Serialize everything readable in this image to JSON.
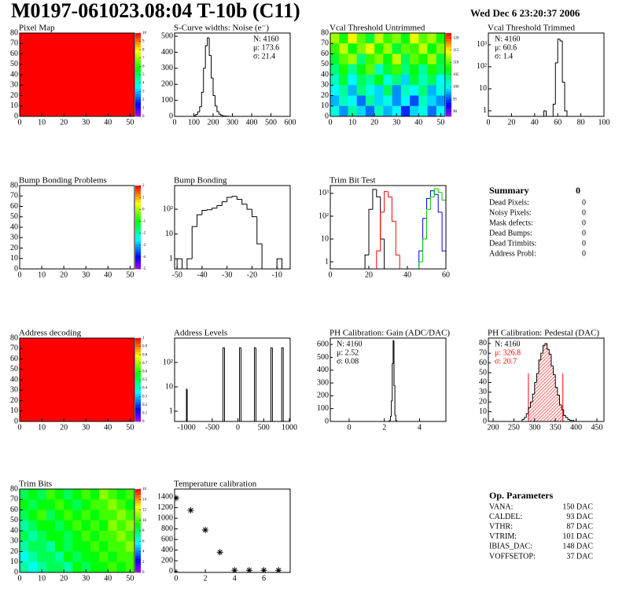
{
  "title": "M0197-061023.08:04 T-10b (C11)",
  "date": "Wed Dec  6 23:20:37 2006",
  "chart_data": [
    {
      "type": "heatmap",
      "title": "Pixel Map",
      "xlim": [
        0,
        52
      ],
      "ylim": [
        0,
        80
      ],
      "xticks": [
        0,
        10,
        20,
        30,
        40,
        50
      ],
      "yticks": [
        0,
        10,
        20,
        30,
        40,
        50,
        60,
        70,
        80
      ],
      "zlim": [
        0,
        10
      ],
      "zticks": [
        0,
        1,
        2,
        3,
        4,
        5,
        6,
        7,
        8,
        9,
        10
      ],
      "values": [
        [
          10
        ]
      ]
    },
    {
      "type": "histogram",
      "title": "S-Curve widths: Noise (e⁻)",
      "xlim": [
        0,
        600
      ],
      "ylim": [
        0,
        520
      ],
      "xticks": [
        0,
        100,
        200,
        300,
        400,
        500,
        600
      ],
      "yticks": [
        0,
        100,
        200,
        300,
        400,
        500
      ],
      "bins": [
        100,
        110,
        120,
        130,
        140,
        150,
        160,
        170,
        180,
        190,
        200,
        210,
        220,
        230,
        240,
        250,
        260,
        270,
        280
      ],
      "values": [
        4,
        12,
        28,
        60,
        150,
        300,
        440,
        490,
        380,
        240,
        130,
        65,
        30,
        14,
        7,
        3,
        2,
        1
      ],
      "color": "#000000",
      "stats": [
        "N: 4160",
        "μ: 173.6",
        "σ: 21.4"
      ],
      "stats_position": "upper right"
    },
    {
      "type": "heatmap",
      "title": "Vcal Threshold Untrimmed",
      "xlim": [
        0,
        52
      ],
      "ylim": [
        0,
        80
      ],
      "xticks": [
        0,
        10,
        20,
        30,
        40,
        50
      ],
      "yticks": [
        0,
        10,
        20,
        30,
        40,
        50,
        60,
        70,
        80
      ],
      "zlim": [
        88,
        122
      ],
      "zticks": [
        90,
        95,
        100,
        105,
        110,
        115,
        120
      ],
      "values": [
        [
          112,
          108,
          115,
          110,
          106,
          113,
          109,
          111,
          107,
          114,
          110,
          112,
          108
        ],
        [
          109,
          113,
          107,
          111,
          114,
          108,
          112,
          106,
          110,
          109,
          113,
          107,
          111
        ],
        [
          106,
          110,
          112,
          104,
          109,
          111,
          107,
          113,
          105,
          110,
          108,
          112,
          106
        ],
        [
          104,
          108,
          103,
          107,
          110,
          102,
          106,
          109,
          104,
          107,
          103,
          108,
          105
        ],
        [
          102,
          106,
          100,
          105,
          103,
          107,
          101,
          104,
          99,
          106,
          102,
          105,
          100
        ],
        [
          100,
          103,
          98,
          104,
          101,
          99,
          105,
          97,
          102,
          100,
          104,
          98,
          101
        ],
        [
          98,
          102,
          100,
          96,
          103,
          99,
          101,
          97,
          100,
          95,
          102,
          99,
          97
        ],
        [
          101,
          97,
          103,
          99,
          96,
          102,
          98,
          100,
          94,
          99,
          101,
          96,
          100
        ]
      ]
    },
    {
      "type": "histogram",
      "title": "Vcal Threshold Trimmed",
      "log_y": true,
      "xlim": [
        0,
        100
      ],
      "ylim": [
        0.56,
        3400
      ],
      "xticks": [
        0,
        20,
        40,
        60,
        80,
        100
      ],
      "yticks": [
        1,
        10,
        {
          "value": 100,
          "label": "10²"
        },
        {
          "value": 1000,
          "label": "10³"
        }
      ],
      "bins": [
        48,
        50,
        52,
        54,
        56,
        58,
        60,
        62,
        64,
        66,
        68
      ],
      "values": [
        1,
        0,
        0,
        0,
        2,
        150,
        1800,
        1500,
        20,
        1
      ],
      "color": "#000000",
      "stats": [
        "N: 4160",
        "μ: 60.6",
        "σ:  1.4"
      ],
      "stats_position": "upper left"
    },
    {
      "type": "heatmap",
      "title": "Bump Bonding Problems",
      "xlim": [
        0,
        52
      ],
      "ylim": [
        0,
        80
      ],
      "xticks": [
        0,
        10,
        20,
        30,
        40,
        50
      ],
      "yticks": [
        0,
        10,
        20,
        30,
        40,
        50,
        60,
        70,
        80
      ],
      "zlim": [
        -5,
        2
      ],
      "zticks": [
        -5,
        -4,
        -3,
        -2,
        -1,
        0,
        1,
        2
      ],
      "values": []
    },
    {
      "type": "histogram",
      "title": "Bump Bonding",
      "log_y": true,
      "xlim": [
        -51,
        -4.7
      ],
      "ylim": [
        0.39,
        900
      ],
      "xticks": [
        -50,
        -40,
        -30,
        -20,
        -10
      ],
      "yticks": [
        1,
        10,
        {
          "value": 100,
          "label": "10²"
        }
      ],
      "bins": [
        -50,
        -48,
        -46,
        -44,
        -42,
        -40,
        -38,
        -36,
        -34,
        -32,
        -30,
        -28,
        -26,
        -24,
        -22,
        -20,
        -18,
        -16,
        -14,
        -12,
        -10,
        -8
      ],
      "values": [
        1,
        0,
        1,
        20,
        60,
        90,
        95,
        110,
        140,
        200,
        300,
        330,
        250,
        160,
        100,
        50,
        4,
        0,
        0,
        0,
        1
      ],
      "color": "#000000"
    },
    {
      "type": "multi_histogram",
      "title": "Trim Bit Test",
      "log_y": true,
      "xlim": [
        0,
        60
      ],
      "ylim": [
        0.49,
        2200
      ],
      "xticks": [
        0,
        20,
        40,
        60
      ],
      "yticks": [
        1,
        10,
        {
          "value": 100,
          "label": "10²"
        },
        {
          "value": 1000,
          "label": "10³"
        }
      ],
      "bins": [
        16,
        18,
        20,
        22,
        24,
        26,
        28,
        30,
        32,
        34,
        36,
        38,
        40,
        42,
        44,
        46,
        48,
        50,
        52,
        54,
        56,
        58,
        60,
        62,
        64
      ],
      "series": [
        {
          "color": "#000000",
          "values": [
            0,
            2,
            200,
            1500,
            700,
            10,
            0,
            0,
            0,
            0,
            0,
            0,
            0,
            0,
            0,
            0,
            0,
            0,
            0,
            0,
            0,
            0,
            0,
            0
          ]
        },
        {
          "color": "#ff0000",
          "values": [
            0,
            0,
            0,
            0,
            3,
            150,
            1200,
            700,
            60,
            2,
            0,
            0,
            0,
            0,
            0,
            0,
            0,
            0,
            0,
            0,
            0,
            0,
            0,
            0
          ]
        },
        {
          "color": "#0000ff",
          "values": [
            0,
            0,
            0,
            0,
            0,
            0,
            0,
            0,
            0,
            0,
            0,
            0,
            0,
            0,
            0,
            3,
            80,
            600,
            1300,
            900,
            150,
            3,
            0,
            0
          ]
        },
        {
          "color": "#00cc00",
          "values": [
            0,
            0,
            0,
            0,
            0,
            0,
            0,
            0,
            0,
            0,
            0,
            0,
            0,
            0,
            0,
            1,
            10,
            200,
            700,
            1600,
            1100,
            500,
            80,
            2
          ]
        }
      ]
    },
    {
      "type": "heatmap",
      "title": "Address decoding",
      "xlim": [
        0,
        52
      ],
      "ylim": [
        0,
        80
      ],
      "xticks": [
        0,
        10,
        20,
        30,
        40,
        50
      ],
      "yticks": [
        0,
        10,
        20,
        30,
        40,
        50,
        60,
        70,
        80
      ],
      "zlim": [
        0,
        1
      ],
      "zticks": [
        0,
        0.1,
        0.2,
        0.3,
        0.4,
        0.5,
        0.6,
        0.7,
        0.8,
        0.9,
        1
      ],
      "values": [
        [
          1
        ]
      ]
    },
    {
      "type": "histogram",
      "title": "Address Levels",
      "log_y": true,
      "xlim": [
        -1230,
        1015
      ],
      "ylim": [
        0.38,
        1000
      ],
      "xticks": [
        -1000,
        -500,
        0,
        500,
        1000
      ],
      "yticks": [
        1,
        10,
        {
          "value": 100,
          "label": "10²"
        }
      ],
      "bins": [
        -1000,
        -985,
        -290,
        -260,
        30,
        60,
        320,
        350,
        640,
        670,
        850,
        880
      ],
      "values": [
        8,
        0,
        400,
        0,
        400,
        0,
        400,
        0,
        400,
        0,
        400
      ],
      "color": "#000000"
    },
    {
      "type": "histogram",
      "title": "PH Calibration: Gain (ADC/DAC)",
      "xlim": [
        -1.07,
        5.5
      ],
      "ylim": [
        0,
        650
      ],
      "xticks": [
        0,
        2,
        4
      ],
      "yticks": [
        0,
        100,
        200,
        300,
        400,
        500,
        600
      ],
      "bins": [
        2.25,
        2.3,
        2.35,
        2.4,
        2.45,
        2.5,
        2.55,
        2.6,
        2.65,
        2.7,
        2.75
      ],
      "values": [
        2,
        8,
        40,
        160,
        450,
        630,
        280,
        50,
        8,
        1
      ],
      "color": "#000000",
      "stats": [
        "N: 4160",
        "μ: 2.52",
        "σ: 0.08"
      ],
      "stats_position": "upper left"
    },
    {
      "type": "histogram",
      "title": "PH Calibration: Pedestal (DAC)",
      "xlim": [
        188.6,
        467
      ],
      "ylim": [
        0,
        85.5
      ],
      "xticks": [
        200,
        250,
        300,
        350,
        400,
        450
      ],
      "yticks": [
        0,
        10,
        20,
        30,
        40,
        50,
        60,
        70,
        80
      ],
      "bins": [
        270,
        275,
        280,
        285,
        290,
        295,
        300,
        305,
        310,
        315,
        320,
        325,
        330,
        335,
        340,
        345,
        350,
        355,
        360,
        365,
        370,
        375,
        380,
        385,
        390,
        395,
        400
      ],
      "values": [
        2,
        4,
        8,
        14,
        20,
        28,
        40,
        49,
        63,
        70,
        78,
        80,
        74,
        69,
        57,
        48,
        35,
        27,
        17,
        12,
        6,
        4,
        2,
        1,
        1,
        0
      ],
      "color": "#000000",
      "fit_color": "#ff0000",
      "fit_range": [
        285,
        368
      ],
      "stats": [
        "N: 4160",
        "μ: 326.8",
        "σ: 20.7"
      ],
      "stats_colors": [
        "#000000",
        "#ff0000",
        "#ff0000"
      ],
      "stats_position": "upper left"
    },
    {
      "type": "heatmap",
      "title": "Trim Bits",
      "xlim": [
        0,
        52
      ],
      "ylim": [
        0,
        80
      ],
      "xticks": [
        0,
        10,
        20,
        30,
        40,
        50
      ],
      "yticks": [
        0,
        10,
        20,
        30,
        40,
        50,
        60,
        70,
        80
      ],
      "zlim": [
        0,
        16
      ],
      "zticks": [
        0,
        2,
        4,
        6,
        8,
        10,
        12,
        14,
        16
      ],
      "values": [
        [
          8,
          9,
          8,
          10,
          9,
          8,
          9,
          10,
          9,
          11,
          10,
          9,
          10
        ],
        [
          9,
          8,
          9,
          9,
          10,
          9,
          8,
          9,
          10,
          10,
          11,
          10,
          9
        ],
        [
          8,
          9,
          10,
          8,
          9,
          10,
          9,
          10,
          9,
          10,
          10,
          11,
          10
        ],
        [
          7,
          8,
          9,
          9,
          8,
          9,
          10,
          9,
          10,
          9,
          11,
          10,
          11
        ],
        [
          8,
          7,
          8,
          9,
          9,
          8,
          9,
          10,
          9,
          10,
          10,
          11,
          10
        ],
        [
          7,
          8,
          8,
          7,
          9,
          8,
          9,
          9,
          10,
          9,
          10,
          10,
          11
        ],
        [
          6,
          7,
          8,
          8,
          7,
          9,
          8,
          9,
          9,
          10,
          9,
          10,
          10
        ],
        [
          7,
          6,
          7,
          8,
          8,
          7,
          9,
          8,
          9,
          9,
          10,
          9,
          10
        ]
      ]
    },
    {
      "type": "scatter",
      "title": "Temperature calibration",
      "xlim": [
        -0.1,
        7.8
      ],
      "ylim": [
        -20,
        1550
      ],
      "xticks": [
        0,
        2,
        4,
        6
      ],
      "yticks": [
        0,
        200,
        400,
        600,
        800,
        1000,
        1200,
        1400
      ],
      "x": [
        0,
        1,
        2,
        3,
        4,
        5,
        6,
        7
      ],
      "values": [
        1380,
        1150,
        780,
        360,
        20,
        20,
        20,
        20
      ],
      "color": "#000000"
    }
  ],
  "summary": {
    "title": "Summary",
    "total": 0,
    "rows": [
      {
        "label": "Dead Pixels:",
        "value": 0
      },
      {
        "label": "Noisy Pixels:",
        "value": 0
      },
      {
        "label": "Mask defects:",
        "value": 0
      },
      {
        "label": "Dead Bumps:",
        "value": 0
      },
      {
        "label": "Dead Trimbits:",
        "value": 0
      },
      {
        "label": "Address Probl:",
        "value": 0
      }
    ]
  },
  "parameters": {
    "title": "Op. Parameters",
    "rows": [
      {
        "label": "VANA:",
        "value": "150 DAC"
      },
      {
        "label": "CALDEL:",
        "value": "93 DAC"
      },
      {
        "label": "VTHR:",
        "value": "87 DAC"
      },
      {
        "label": "VTRIM:",
        "value": "101 DAC"
      },
      {
        "label": "IBIAS_DAC:",
        "value": "148 DAC"
      },
      {
        "label": "VOFFSETOP:",
        "value": "37 DAC"
      }
    ]
  }
}
